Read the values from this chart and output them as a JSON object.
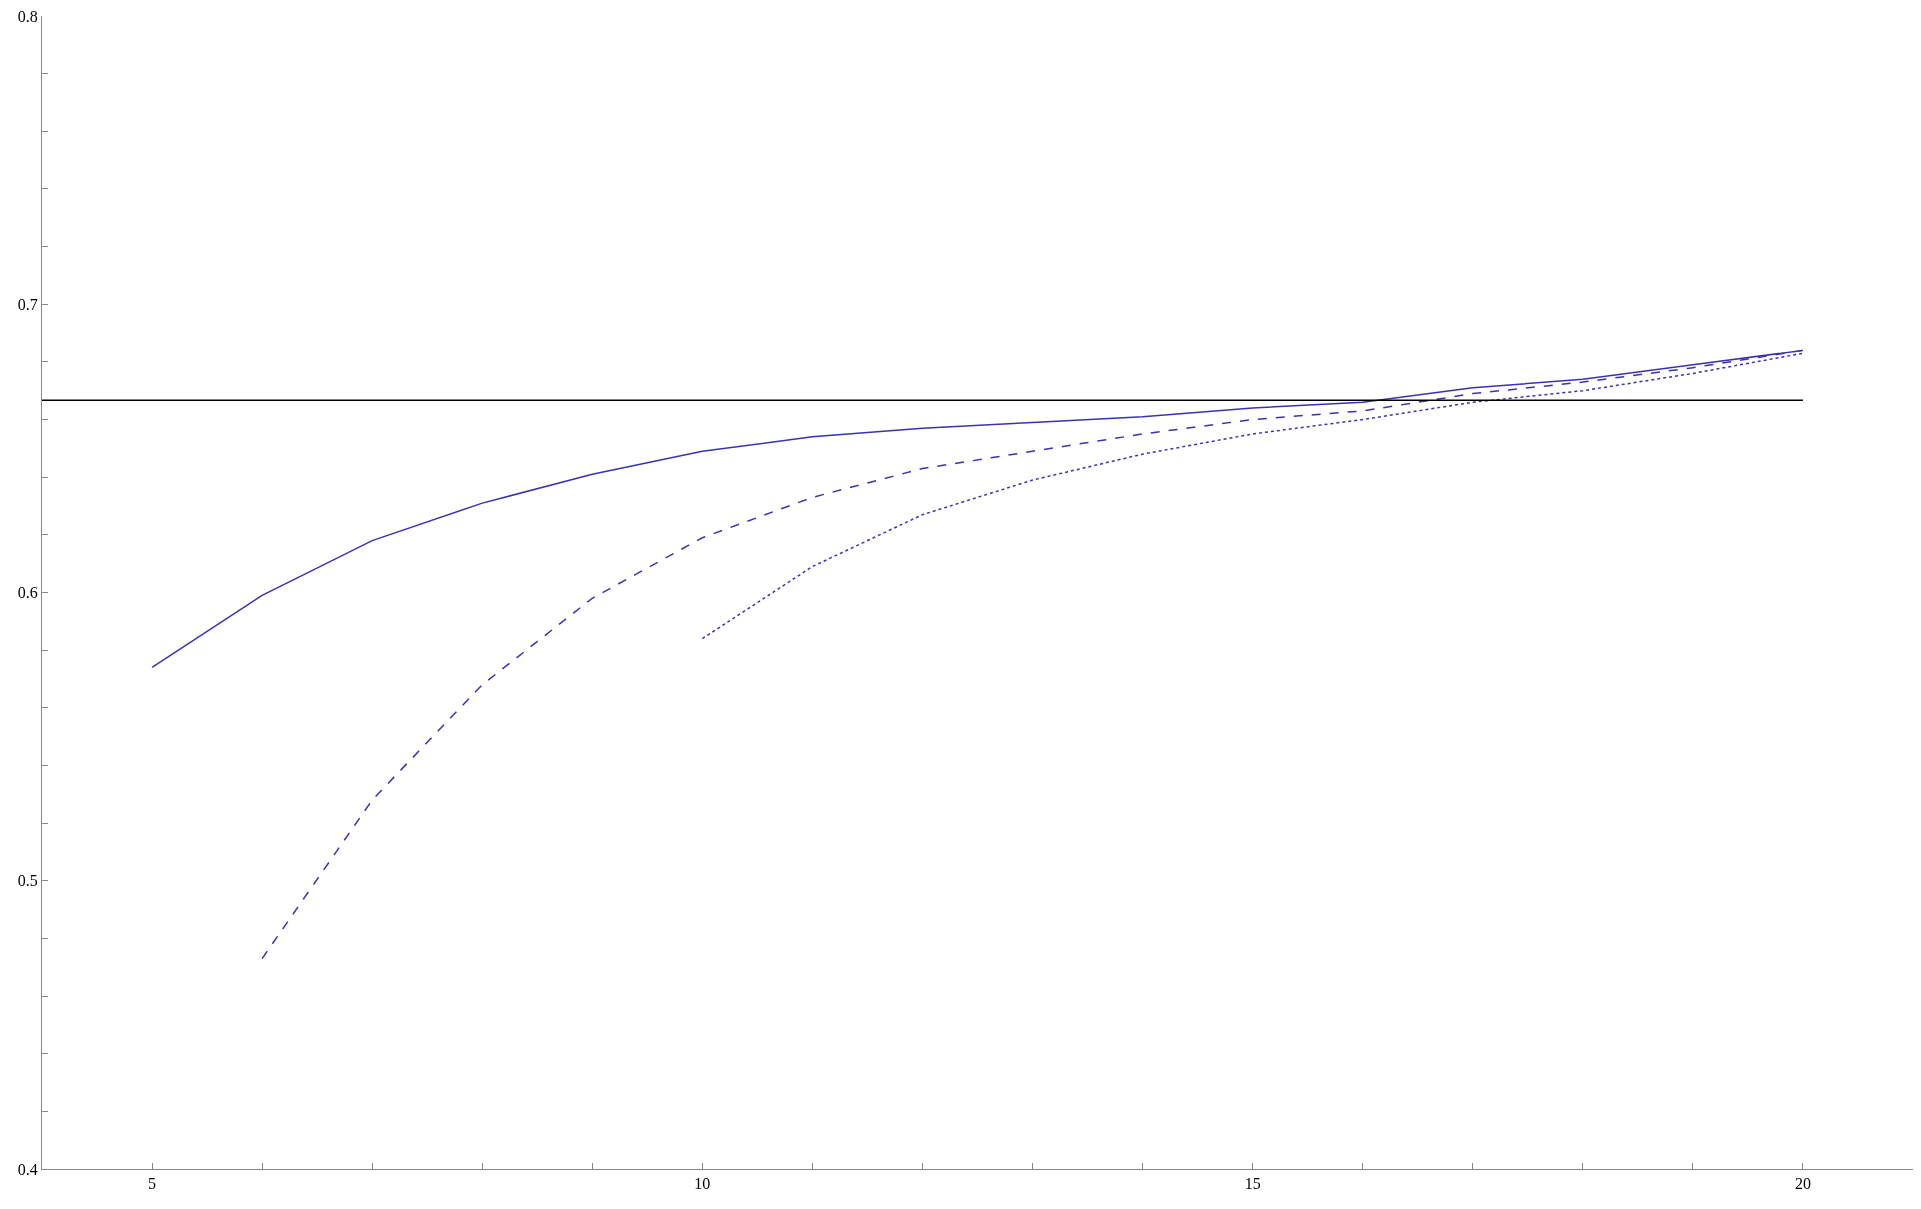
{
  "chart_data": {
    "type": "line",
    "xlim": [
      4,
      21
    ],
    "ylim": [
      0.4,
      0.8
    ],
    "xticks": [
      {
        "value": 4,
        "label": null
      },
      5,
      {
        "value": 6,
        "label": null
      },
      {
        "value": 7,
        "label": null
      },
      {
        "value": 8,
        "label": null
      },
      {
        "value": 9,
        "label": null
      },
      10,
      {
        "value": 11,
        "label": null
      },
      {
        "value": 12,
        "label": null
      },
      {
        "value": 13,
        "label": null
      },
      {
        "value": 14,
        "label": null
      },
      15,
      {
        "value": 16,
        "label": null
      },
      {
        "value": 17,
        "label": null
      },
      {
        "value": 18,
        "label": null
      },
      {
        "value": 19,
        "label": null
      },
      20
    ],
    "yticks": [
      0.4,
      {
        "value": 0.42,
        "label": null
      },
      {
        "value": 0.44,
        "label": null
      },
      {
        "value": 0.46,
        "label": null
      },
      {
        "value": 0.48,
        "label": null
      },
      0.5,
      {
        "value": 0.52,
        "label": null
      },
      {
        "value": 0.54,
        "label": null
      },
      {
        "value": 0.56,
        "label": null
      },
      {
        "value": 0.58,
        "label": null
      },
      0.6,
      {
        "value": 0.62,
        "label": null
      },
      {
        "value": 0.64,
        "label": null
      },
      {
        "value": 0.66,
        "label": null
      },
      {
        "value": 0.68,
        "label": null
      },
      0.7,
      {
        "value": 0.72,
        "label": null
      },
      {
        "value": 0.74,
        "label": null
      },
      {
        "value": 0.76,
        "label": null
      },
      {
        "value": 0.78,
        "label": null
      },
      0.8
    ],
    "marker": "none",
    "series": [
      {
        "color": "#3a32b0",
        "line_style": "solid",
        "x": [
          5,
          6,
          7,
          8,
          9,
          10,
          11,
          12,
          13,
          14,
          15,
          16,
          17,
          18,
          19,
          20
        ],
        "values": [
          0.574,
          0.599,
          0.618,
          0.631,
          0.641,
          0.649,
          0.654,
          0.657,
          0.659,
          0.661,
          0.664,
          0.666,
          0.671,
          0.674,
          0.679,
          0.684
        ]
      },
      {
        "color": "#3a32b0",
        "line_style": "dashed",
        "x": [
          6,
          7,
          8,
          9,
          10,
          11,
          12,
          13,
          14,
          15,
          16,
          17,
          18,
          19,
          20
        ],
        "values": [
          0.473,
          0.528,
          0.568,
          0.598,
          0.619,
          0.633,
          0.643,
          0.649,
          0.655,
          0.66,
          0.663,
          0.669,
          0.673,
          0.678,
          0.684
        ]
      },
      {
        "color": "#3a32b0",
        "line_style": "dotted",
        "x": [
          10,
          11,
          12,
          13,
          14,
          15,
          16,
          17,
          18,
          19,
          20
        ],
        "values": [
          0.584,
          0.609,
          0.627,
          0.639,
          0.648,
          0.655,
          0.66,
          0.666,
          0.67,
          0.676,
          0.683
        ]
      }
    ],
    "ref_lines": [
      {
        "axis": "y",
        "value": 0.6667,
        "color": "#000000"
      }
    ]
  }
}
